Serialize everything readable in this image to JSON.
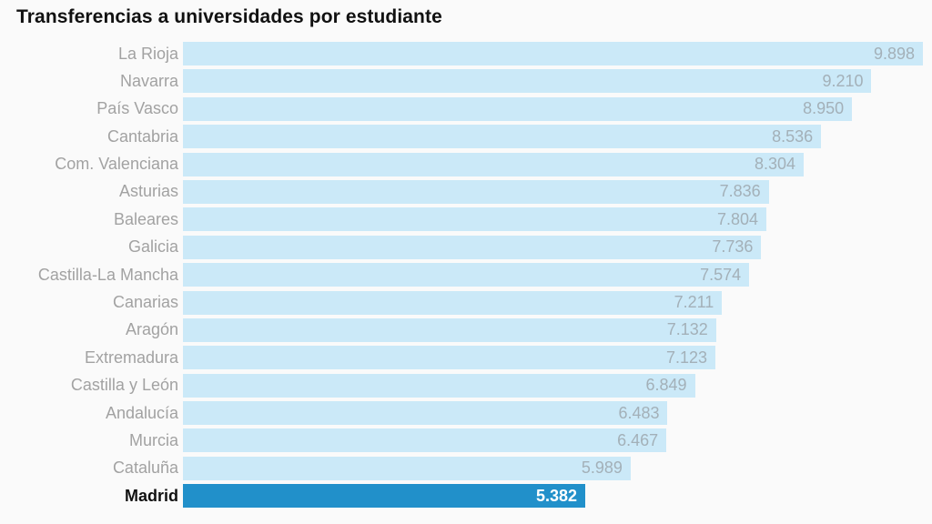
{
  "header": {
    "title": "Transferencias a universidades por estudiante"
  },
  "chart_data": {
    "type": "bar",
    "orientation": "horizontal",
    "title": "Transferencias a universidades por estudiante",
    "categories": [
      "La Rioja",
      "Navarra",
      "País Vasco",
      "Cantabria",
      "Com. Valenciana",
      "Asturias",
      "Baleares",
      "Galicia",
      "Castilla-La Mancha",
      "Canarias",
      "Aragón",
      "Extremadura",
      "Castilla y León",
      "Andalucía",
      "Murcia",
      "Cataluña",
      "Madrid"
    ],
    "values": [
      9898,
      9210,
      8950,
      8536,
      8304,
      7836,
      7804,
      7736,
      7574,
      7211,
      7132,
      7123,
      6849,
      6483,
      6467,
      5989,
      5382
    ],
    "value_labels": [
      "9.898",
      "9.210",
      "8.950",
      "8.536",
      "8.304",
      "7.836",
      "7.804",
      "7.736",
      "7.574",
      "7.211",
      "7.132",
      "7.123",
      "6.849",
      "6.483",
      "6.467",
      "5.989",
      "5.382"
    ],
    "xlim": [
      0,
      9898
    ],
    "grid": false,
    "legend": false,
    "value_label_position": "inside-end",
    "highlight": {
      "category": "Madrid",
      "index": 16
    }
  },
  "colors": {
    "bar": "#cbe9f8",
    "highlight_bar": "#2190ca",
    "label": "#a2a2a2",
    "value": "#a3b0b8",
    "highlight_label": "#111111",
    "highlight_value": "#ffffff",
    "title": "#111111",
    "background": "#fafafa"
  }
}
